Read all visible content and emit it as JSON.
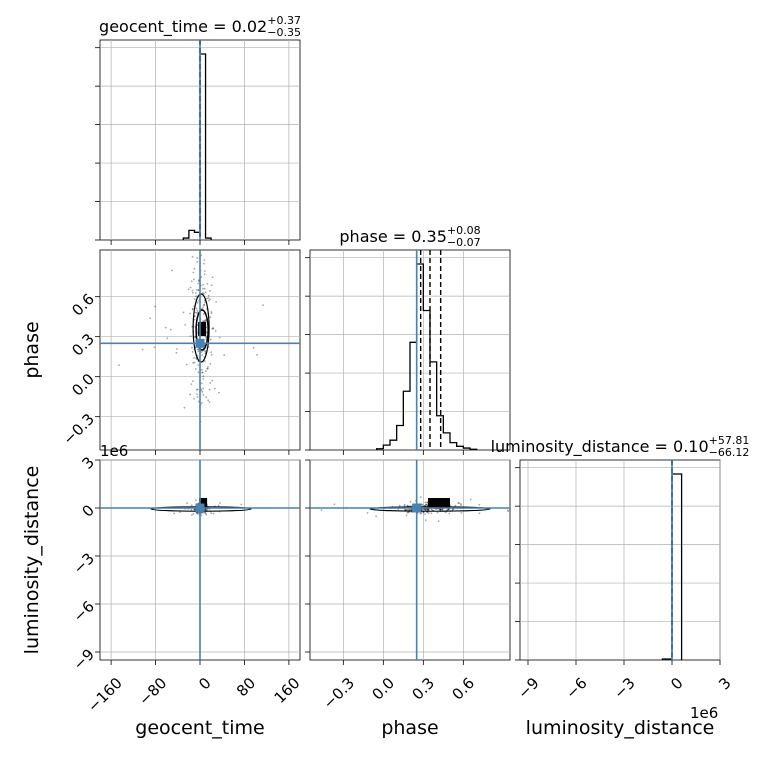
{
  "colors": {
    "truth": "#4682b4",
    "hist": "#000000",
    "grid": "#b0b0b0",
    "points": "#000000"
  },
  "chart_data": {
    "type": "corner",
    "parameters": [
      {
        "name": "geocent_time",
        "axis_label": "geocent_time",
        "title": {
          "main": "geocent_time = 0.02",
          "plus": "+0.37",
          "minus": "−0.35"
        },
        "range": [
          -180,
          180
        ],
        "ticks": [
          -160,
          -80,
          0,
          80,
          160
        ],
        "tick_labels": [
          "−160",
          "−80",
          "0",
          "80",
          "160"
        ],
        "truth": 0.0,
        "quantiles": [
          -0.33,
          0.02,
          0.39
        ],
        "hist": {
          "edges": [
            -30,
            -20,
            -10,
            0,
            10,
            20
          ],
          "counts": [
            0.01,
            0.05,
            0.04,
            0.97,
            0.01
          ]
        }
      },
      {
        "name": "phase",
        "axis_label": "phase",
        "title": {
          "main": "phase = 0.35",
          "plus": "+0.08",
          "minus": "−0.07"
        },
        "range": [
          -0.55,
          0.95
        ],
        "ticks": [
          -0.3,
          0.0,
          0.3,
          0.6
        ],
        "tick_labels": [
          "−0.3",
          "0.0",
          "0.3",
          "0.6"
        ],
        "truth": 0.25,
        "quantiles": [
          0.28,
          0.35,
          0.43
        ],
        "hist": {
          "edges": [
            -0.05,
            0.0,
            0.05,
            0.1,
            0.15,
            0.2,
            0.25,
            0.3,
            0.35,
            0.4,
            0.45,
            0.5,
            0.55,
            0.6,
            0.65,
            0.7
          ],
          "counts": [
            0.005,
            0.02,
            0.04,
            0.1,
            0.24,
            0.44,
            0.76,
            0.57,
            0.36,
            0.14,
            0.07,
            0.03,
            0.015,
            0.008,
            0.003
          ]
        }
      },
      {
        "name": "luminosity_distance",
        "axis_label": "luminosity_distance",
        "title": {
          "main": "luminosity_distance = 0.10",
          "plus": "+57.81",
          "minus": "−66.12"
        },
        "range": [
          -9.5,
          3.0
        ],
        "ticks": [
          -9,
          -6,
          -3,
          0,
          3
        ],
        "tick_labels": [
          "−9",
          "−6",
          "−3",
          "0",
          "3"
        ],
        "offset_label": "1e6",
        "truth": 0.0,
        "quantiles": [
          -6.61e-05,
          1e-07,
          5.79e-05
        ],
        "hist": {
          "edges": [
            -0.6,
            0.0,
            0.6
          ],
          "counts": [
            0.005,
            0.95
          ]
        }
      }
    ],
    "contour_centers": {
      "geocent_time__phase": [
        2,
        0.35
      ],
      "geocent_time__luminosity_distance": [
        2,
        0.0
      ],
      "phase__luminosity_distance": [
        0.35,
        0.0
      ]
    },
    "grid": true
  }
}
